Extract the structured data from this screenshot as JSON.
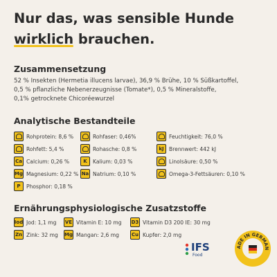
{
  "title": {
    "line1": "Nur das, was sensible Hunde",
    "highlight": "wirklich",
    "rest": "brauchen."
  },
  "composition": {
    "heading": "Zusammensetzung",
    "lines": [
      "52 % Insekten (Hermetia illucens larvae), 36,9 % Brühe, 10 % Süßkartoffel,",
      "0,5 % pflanzliche Nebenerzeugnisse (Tomate*), 0,5 % Mineralstoffe,",
      "0,1% getrocknete Chicoréewurzel"
    ]
  },
  "analysis": {
    "heading": "Analytische Bestandteile",
    "items": [
      {
        "label": "Rohprotein: 8,6 %"
      },
      {
        "label": "Rohfaser: 0,46%"
      },
      {
        "label": "Feuchtigkeit: 76,0 %"
      },
      {
        "label": "Rohfett: 5,4 %"
      },
      {
        "label": "Rohasche: 0,8 %"
      },
      {
        "symbol": "kJ",
        "label": "Brennwert: 442 kJ"
      },
      {
        "symbol": "Ca",
        "label": "Calcium: 0,26 %"
      },
      {
        "symbol": "K",
        "label": "Kalium: 0,03 %"
      },
      {
        "label": "Linolsäure: 0,50 %"
      },
      {
        "symbol": "Mg",
        "label": "Magnesium: 0,22 %"
      },
      {
        "symbol": "Na",
        "label": "Natrium: 0,10 %"
      },
      {
        "label": "Omega-3-Fettsäuren: 0,10 %"
      },
      {
        "symbol": "P",
        "label": "Phosphor: 0,18 %"
      }
    ]
  },
  "additives": {
    "heading": "Ernährungsphysiologische Zusatzstoffe",
    "items": [
      {
        "symbol": "Iod",
        "label": "Jod: 1,1 mg"
      },
      {
        "symbol": "VE",
        "label": "Vitamin E: 10 mg"
      },
      {
        "symbol": "D3",
        "label": "Vitamin D3 200 IE: 30 mg"
      },
      {
        "symbol": "Zn",
        "label": "Zink: 32 mg"
      },
      {
        "symbol": "Mg",
        "label": "Mangan: 2,6 mg"
      },
      {
        "symbol": "Cu",
        "label": "Kupfer: 2,0 mg"
      }
    ]
  },
  "badges": {
    "ifs": "IFS",
    "ifs_sub": "Food",
    "seal": "MADE IN GERMANY"
  }
}
